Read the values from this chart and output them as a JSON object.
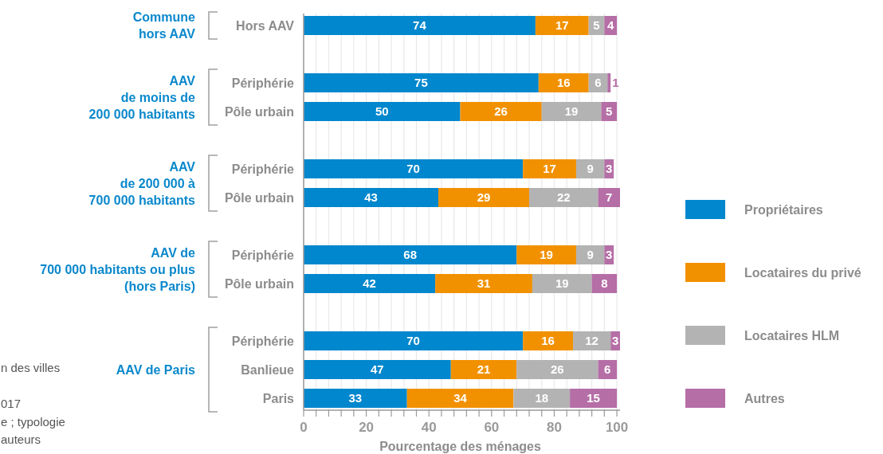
{
  "chart_data": {
    "type": "bar",
    "orientation": "horizontal",
    "stacked": true,
    "categories": [
      "Hors AAV",
      null,
      "Périphérie",
      "Pôle urbain",
      null,
      "Périphérie",
      "Pôle urbain",
      null,
      "Périphérie",
      "Pôle urbain",
      null,
      "Périphérie",
      "Banlieue",
      "Paris"
    ],
    "series": [
      {
        "name": "Propriétaires",
        "color": "#0087cd",
        "values": [
          74,
          null,
          75,
          50,
          null,
          70,
          43,
          null,
          68,
          42,
          null,
          70,
          47,
          33
        ]
      },
      {
        "name": "Locataires du privé",
        "color": "#f29100",
        "values": [
          17,
          null,
          16,
          26,
          null,
          17,
          29,
          null,
          19,
          31,
          null,
          16,
          21,
          34
        ]
      },
      {
        "name": "Locataires HLM",
        "color": "#b3b3b3",
        "values": [
          5,
          null,
          6,
          19,
          null,
          9,
          22,
          null,
          9,
          19,
          null,
          12,
          26,
          18
        ]
      },
      {
        "name": "Autres",
        "color": "#b56ea6",
        "values": [
          4,
          null,
          1,
          5,
          null,
          3,
          7,
          null,
          3,
          8,
          null,
          3,
          6,
          15
        ]
      }
    ],
    "xlim": [
      0,
      101
    ],
    "xticks": [
      0,
      {
        "value": 4,
        "label": null
      },
      {
        "value": 8,
        "label": null
      },
      {
        "value": 12,
        "label": null
      },
      {
        "value": 16,
        "label": null
      },
      20,
      {
        "value": 24,
        "label": null
      },
      {
        "value": 28,
        "label": null
      },
      {
        "value": 32,
        "label": null
      },
      {
        "value": 36,
        "label": null
      },
      40,
      {
        "value": 44,
        "label": null
      },
      {
        "value": 48,
        "label": null
      },
      {
        "value": 52,
        "label": null
      },
      {
        "value": 56,
        "label": null
      },
      60,
      {
        "value": 64,
        "label": null
      },
      {
        "value": 68,
        "label": null
      },
      {
        "value": 72,
        "label": null
      },
      {
        "value": 76,
        "label": null
      },
      80,
      {
        "value": 84,
        "label": null
      },
      {
        "value": 88,
        "label": null
      },
      {
        "value": 92,
        "label": null
      },
      {
        "value": 96,
        "label": null
      },
      100
    ],
    "xlabel": "Pourcentage des ménages",
    "grid": "x",
    "legend": "right",
    "data_labels": true,
    "annotations": [
      "Commune\nhors AAV",
      "AAV\nde moins de\n200 000 habitants",
      "AAV\nde 200 000 à\n700 000 habitants",
      "AAV de\n700 000 habitants ou plus\n(hors Paris)",
      "AAV de Paris",
      "n des villes\n\n017\ne ; typologie\nauteurs"
    ]
  }
}
